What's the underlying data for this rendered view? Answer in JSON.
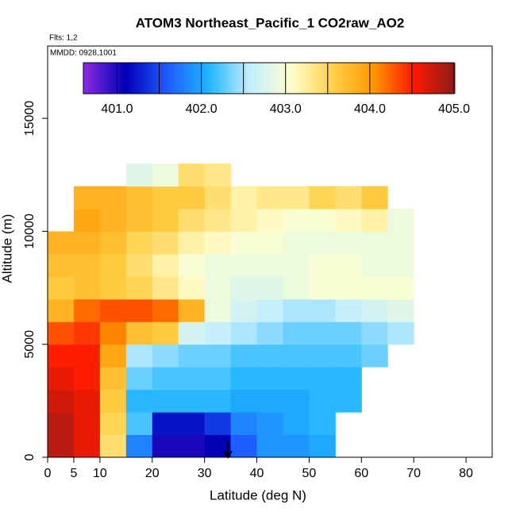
{
  "chart_data": {
    "type": "heatmap",
    "title": "ATOM3 Northeast_Pacific_1 CO2raw_AO2",
    "flights": "Flts: 1,2",
    "dates": "MMDD: 0928,1001",
    "x_label": "Latitude (deg N)",
    "y_label": "Altitude (m)",
    "xlim": [
      0,
      85
    ],
    "ylim": [
      0,
      18200
    ],
    "xticks": [
      0,
      5,
      10,
      20,
      30,
      40,
      50,
      60,
      70,
      80
    ],
    "yticks": [
      0,
      5000,
      10000,
      15000
    ],
    "x_edges": [
      0,
      5,
      10,
      15,
      20,
      25,
      30,
      35,
      40,
      45,
      50,
      55,
      60,
      65,
      70
    ],
    "y_edges": [
      0,
      1000,
      2000,
      3000,
      4000,
      5000,
      6000,
      7000,
      8000,
      9000,
      10000,
      11000,
      12000,
      13000
    ],
    "z": [
      [
        404.8,
        404.6,
        403.4,
        401.8,
        401.0,
        401.0,
        401.1,
        401.6,
        401.9,
        401.9,
        402.0,
        null,
        null,
        null
      ],
      [
        404.8,
        404.6,
        403.5,
        402.2,
        401.2,
        401.2,
        401.4,
        401.8,
        401.9,
        402.0,
        402.1,
        null,
        null,
        null
      ],
      [
        404.7,
        404.6,
        403.6,
        402.1,
        402.1,
        402.1,
        402.1,
        402.0,
        402.0,
        402.0,
        402.1,
        402.1,
        null,
        null
      ],
      [
        404.6,
        404.5,
        403.7,
        402.3,
        402.2,
        402.2,
        402.2,
        402.1,
        402.1,
        402.1,
        402.1,
        402.1,
        null,
        null
      ],
      [
        404.5,
        404.5,
        403.9,
        402.5,
        402.4,
        402.3,
        402.3,
        402.2,
        402.2,
        402.2,
        402.2,
        402.2,
        402.3,
        null
      ],
      [
        404.3,
        404.4,
        404.1,
        403.7,
        403.6,
        402.7,
        402.6,
        402.5,
        402.4,
        402.3,
        402.3,
        402.3,
        402.4,
        402.5
      ],
      [
        403.8,
        404.2,
        404.3,
        404.3,
        404.2,
        403.8,
        402.9,
        402.7,
        402.6,
        402.5,
        402.5,
        402.6,
        402.7,
        402.8
      ],
      [
        403.6,
        403.7,
        403.6,
        403.5,
        403.3,
        403.1,
        402.9,
        402.8,
        402.8,
        402.9,
        403.0,
        403.0,
        403.0,
        403.0
      ],
      [
        403.7,
        403.7,
        403.6,
        403.4,
        403.2,
        403.0,
        402.9,
        402.9,
        402.9,
        402.9,
        403.0,
        403.0,
        402.9,
        402.9
      ],
      [
        403.8,
        403.8,
        403.7,
        403.5,
        403.4,
        403.2,
        403.1,
        403.0,
        403.0,
        402.9,
        402.9,
        402.9,
        402.9,
        402.9
      ],
      [
        null,
        403.9,
        403.8,
        403.7,
        403.6,
        403.4,
        403.3,
        403.2,
        403.1,
        403.0,
        403.0,
        403.1,
        403.2,
        402.9
      ],
      [
        null,
        403.8,
        403.8,
        403.7,
        403.6,
        403.6,
        403.4,
        403.2,
        403.3,
        403.3,
        403.5,
        403.4,
        403.6,
        null
      ],
      [
        null,
        null,
        null,
        402.8,
        402.9,
        403.4,
        403.3,
        null,
        null,
        null,
        null,
        null,
        null,
        null
      ]
    ],
    "colorbar": {
      "lim": [
        400.6,
        405
      ],
      "ticks": [
        {
          "value": 401,
          "label": "401.0"
        },
        {
          "value": 402,
          "label": "402.0"
        },
        {
          "value": 403,
          "label": "403.0"
        },
        {
          "value": 404,
          "label": "404.0"
        },
        {
          "value": 405,
          "label": "405.0"
        }
      ],
      "colors": [
        "#8a2be2",
        "#0000b4",
        "#1e5aff",
        "#1eb4ff",
        "#bfeeff",
        "#ffffd0",
        "#ffd24a",
        "#ff9900",
        "#ff1a00",
        "#8b1a1a"
      ]
    }
  }
}
